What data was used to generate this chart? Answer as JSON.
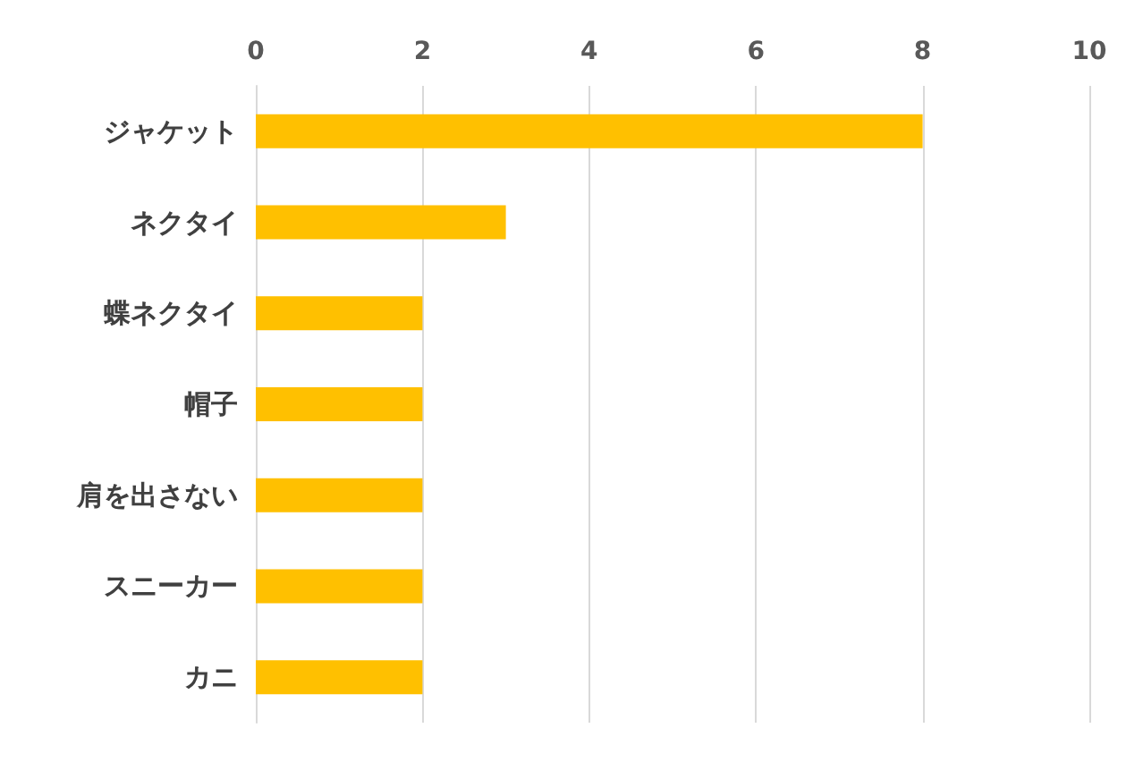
{
  "chart_data": {
    "type": "bar",
    "orientation": "horizontal",
    "categories": [
      "ジャケット",
      "ネクタイ",
      "蝶ネクタイ",
      "帽子",
      "肩を出さない",
      "スニーカー",
      "カニ"
    ],
    "values": [
      8,
      3,
      2,
      2,
      2,
      2,
      2
    ],
    "color": "#ffc000",
    "xlim": [
      0,
      10
    ],
    "xticks": [
      0,
      2,
      4,
      6,
      8,
      10
    ],
    "grid": "x"
  }
}
